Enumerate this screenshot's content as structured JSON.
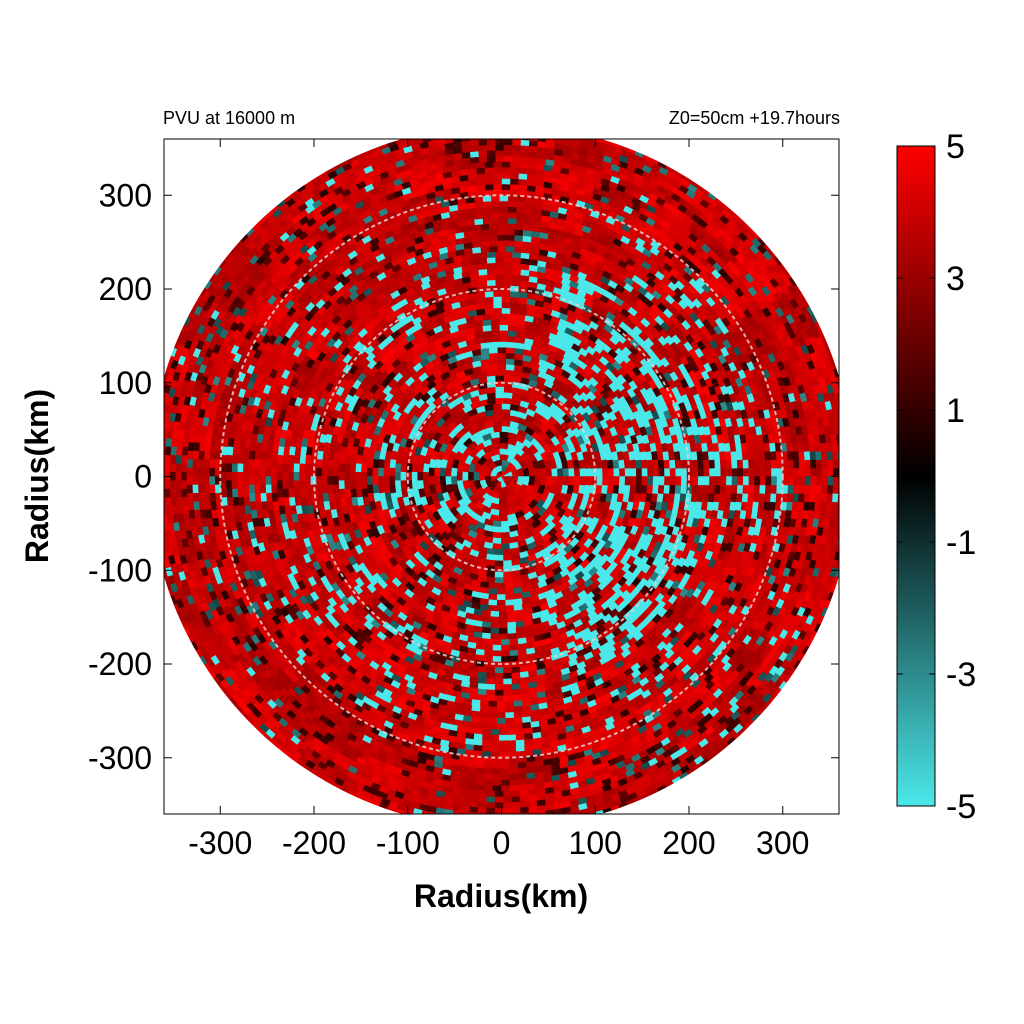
{
  "chart_data": {
    "type": "heatmap",
    "title_left": "PVU at 16000 m",
    "title_right": "Z0=50cm  +19.7hours",
    "xlabel": "Radius(km)",
    "ylabel": "Radius(km)",
    "xlim": [
      -360,
      360
    ],
    "ylim": [
      -360,
      360
    ],
    "x_ticks": [
      -300,
      -200,
      -100,
      0,
      100,
      200,
      300
    ],
    "y_ticks": [
      300,
      200,
      100,
      0,
      -100,
      -200,
      -300
    ],
    "domain_radius_km": 375,
    "reference_circles_km": [
      100,
      200,
      300
    ],
    "colorbar": {
      "min": -5,
      "max": 5,
      "ticks": [
        5,
        3,
        1,
        -1,
        -3,
        -5
      ],
      "colors": [
        "#4be8ea",
        "#000000",
        "#ff0000"
      ]
    }
  }
}
